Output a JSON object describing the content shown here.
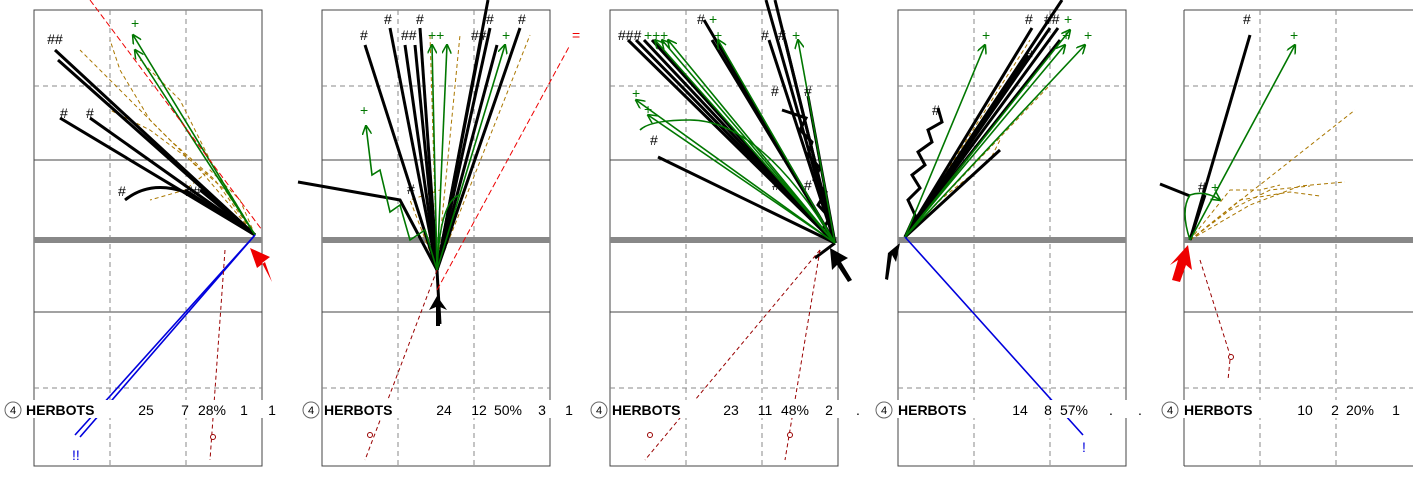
{
  "colors": {
    "success": "#007700",
    "miss": "#000000",
    "fail_pass": "#aa7700",
    "blue": "#0000dd",
    "dark_red": "#990000",
    "red_marker": "#ee0000",
    "black_marker": "#000000",
    "grid": "#888888"
  },
  "chart_data": [
    {
      "type": "table",
      "label_circle": "4",
      "player": "HERBOTS",
      "values": [
        "25",
        "7",
        "28%",
        "1",
        "1"
      ],
      "marker": "red"
    },
    {
      "type": "table",
      "label_circle": "4",
      "player": "HERBOTS",
      "values": [
        "24",
        "12",
        "50%",
        "3",
        "1"
      ],
      "marker": "black"
    },
    {
      "type": "table",
      "label_circle": "4",
      "player": "HERBOTS",
      "values": [
        "23",
        "11",
        "48%",
        "2",
        "."
      ],
      "marker": "black"
    },
    {
      "type": "table",
      "label_circle": "4",
      "player": "HERBOTS",
      "values": [
        "14",
        "8",
        "57%",
        ".",
        "."
      ],
      "marker": "black"
    },
    {
      "type": "table",
      "label_circle": "4",
      "player": "HERBOTS",
      "values": [
        "10",
        "2",
        "20%",
        "1",
        ""
      ],
      "marker": "red"
    }
  ],
  "annotations": {
    "hash": "#",
    "double_hash": "##",
    "triple_hash": "###",
    "plus": "+",
    "double_plus": "++",
    "equals": "=",
    "bang": "!",
    "double_bang": "!!"
  }
}
